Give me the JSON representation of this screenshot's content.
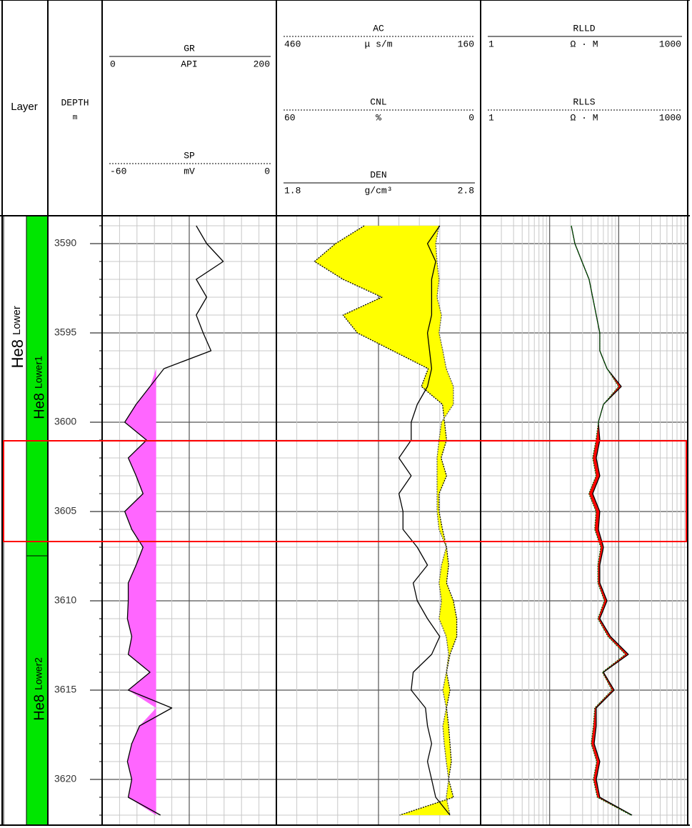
{
  "chart_data": {
    "type": "well-log",
    "column_titles": {
      "layer": "Layer",
      "depth": "DEPTH",
      "depth_unit": "m"
    },
    "ylim": [
      3588.44,
      3622.56
    ],
    "yticks": [
      3590,
      3595,
      3600,
      3605,
      3610,
      3615,
      3620
    ],
    "minor_yticks": [
      3589,
      3590,
      3591,
      3592,
      3593,
      3594,
      3595,
      3596,
      3597,
      3598,
      3599,
      3600,
      3601,
      3602,
      3603,
      3604,
      3605,
      3606,
      3607,
      3608,
      3609,
      3610,
      3611,
      3612,
      3613,
      3614,
      3615,
      3616,
      3617,
      3618,
      3619,
      3620,
      3621,
      3622
    ],
    "depths": [
      3589,
      3590,
      3591,
      3592,
      3593,
      3594,
      3595,
      3596,
      3597,
      3598,
      3599,
      3600,
      3601,
      3602,
      3603,
      3604,
      3605,
      3606,
      3607,
      3608,
      3609,
      3610,
      3611,
      3612,
      3613,
      3614,
      3615,
      3616,
      3617,
      3618,
      3619,
      3620,
      3621,
      3622
    ],
    "zones": [
      {
        "label": "He8",
        "sublabel": "Lower",
        "top": 3588.44,
        "bottom": 3622.56,
        "color": "#ffffff"
      }
    ],
    "subzones": [
      {
        "label": "He8",
        "sublabel": "Lower1",
        "top": 3588.44,
        "bottom": 3607.48,
        "color": "#00e600"
      },
      {
        "label": "He8",
        "sublabel": "Lower2",
        "top": 3607.48,
        "bottom": 3622.56,
        "color": "#00e600"
      }
    ],
    "highlight": {
      "top": 3601.04,
      "bottom": 3606.68,
      "color": "#ff0000"
    },
    "tracks": [
      {
        "xlim": [
          0,
          200
        ],
        "xticks": [
          0,
          20,
          40,
          60,
          80,
          100,
          120,
          140,
          160,
          180,
          200
        ],
        "major_xticks": [
          100
        ],
        "log": false,
        "curves": [
          {
            "name": "GR",
            "unit": "API",
            "xlim": [
              0,
              200
            ],
            "line": "solid",
            "color": "#000000",
            "fill_color": "#ff66ff",
            "fill_to": 62,
            "values": [
              108,
              120,
              139,
              108,
              120,
              108,
              116,
              125,
              71,
              55,
              39,
              26,
              51,
              30,
              39,
              47,
              26,
              34,
              47,
              39,
              30,
              30,
              29,
              34,
              30,
              55,
              30,
              80,
              43,
              34,
              29,
              34,
              30,
              67
            ]
          },
          {
            "name": "SP",
            "unit": "mV",
            "xlim": [
              -60,
              0
            ],
            "line": "dotted",
            "color": "#000000"
          }
        ]
      },
      {
        "xlim": [
          460,
          160
        ],
        "xticks": [
          460,
          430,
          400,
          370,
          340,
          310,
          280,
          250,
          220,
          190,
          160
        ],
        "major_xticks": [
          310
        ],
        "log": false,
        "curves": [
          {
            "name": "AC",
            "unit": "μ s/m",
            "xlim": [
              460,
              160
            ],
            "line": "dotted",
            "color": "#000000",
            "fill_color": "#ffff00",
            "values": [
              331,
              373,
              404,
              362,
              305,
              362,
              341,
              289,
              237,
              247,
              216,
              213,
              210,
              218,
              210,
              221,
              221,
              216,
              210,
              207,
              210,
              200,
              195,
              195,
              205,
              210,
              205,
              210,
              207,
              205,
              203,
              207,
              200,
              279
            ]
          },
          {
            "name": "CNL",
            "unit": "%",
            "xlim": [
              60,
              0
            ],
            "line": "dotted",
            "color": "#555555",
            "values": [
              12.2,
              13.2,
              12.8,
              12.2,
              12.8,
              11.5,
              12.2,
              11.1,
              10.1,
              8.0,
              8.0,
              11.5,
              12.2,
              12.8,
              12.8,
              12.8,
              12.8,
              12.2,
              10.1,
              11.5,
              12.2,
              11.5,
              12.2,
              10.1,
              9.4,
              10.1,
              11.1,
              10.1,
              11.1,
              10.7,
              10.1,
              9.4,
              10.1,
              9.0
            ]
          },
          {
            "name": "DEN",
            "unit": "g/cm³",
            "xlim": [
              1.8,
              2.8
            ],
            "line": "solid",
            "color": "#000000",
            "values": [
              2.6,
              2.54,
              2.58,
              2.56,
              2.56,
              2.56,
              2.54,
              2.55,
              2.56,
              2.54,
              2.49,
              2.46,
              2.46,
              2.4,
              2.46,
              2.4,
              2.42,
              2.42,
              2.49,
              2.54,
              2.47,
              2.49,
              2.54,
              2.6,
              2.56,
              2.47,
              2.46,
              2.53,
              2.54,
              2.56,
              2.54,
              2.56,
              2.58,
              2.65
            ]
          }
        ]
      },
      {
        "xlim": [
          1,
          1000
        ],
        "xticks": [
          1,
          2,
          3,
          4,
          5,
          6,
          7,
          8,
          9,
          10,
          20,
          30,
          40,
          50,
          60,
          70,
          80,
          90,
          100,
          200,
          300,
          400,
          500,
          600,
          700,
          800,
          900,
          1000
        ],
        "major_xticks": [
          10,
          100
        ],
        "log": true,
        "curves": [
          {
            "name": "RLLD",
            "unit": "Ω · M",
            "xlim": [
              1,
              1000
            ],
            "line": "solid",
            "color": "#000000",
            "fill_color": "#ff0000",
            "values": [
              20.6,
              23.2,
              29.4,
              37.3,
              42.0,
              47.3,
              53.3,
              53.3,
              67.7,
              109,
              60.1,
              50.8,
              53.3,
              47.3,
              53.3,
              42.0,
              53.3,
              50.8,
              60.1,
              53.3,
              53.3,
              67.7,
              53.3,
              76.2,
              138,
              60.1,
              85.9,
              47.3,
              47.3,
              44.1,
              53.3,
              47.3,
              53.3,
              156
            ]
          },
          {
            "name": "RLLS",
            "unit": "Ω · M",
            "xlim": [
              1,
              1000
            ],
            "line": "dotted",
            "color": "#006600",
            "values": [
              20.6,
              23.2,
              29.4,
              37.3,
              42.0,
              47.3,
              53.3,
              53.3,
              67.7,
              100,
              60.1,
              50.8,
              47,
              42,
              47,
              37,
              47,
              45,
              55,
              50,
              50,
              62,
              50,
              70,
              125,
              58,
              80,
              45,
              43,
              40,
              48,
              43,
              49,
              150
            ]
          }
        ]
      }
    ]
  }
}
